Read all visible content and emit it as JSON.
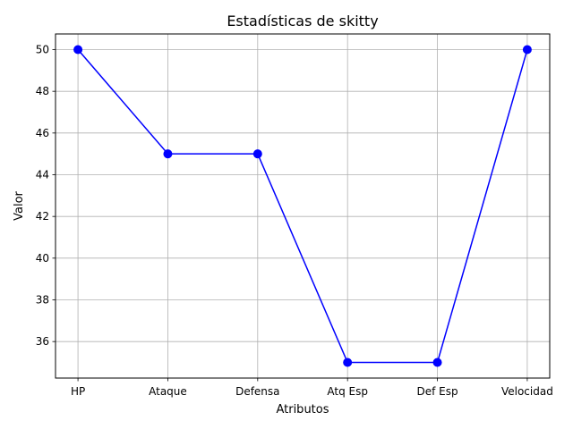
{
  "chart_data": {
    "type": "line",
    "title": "Estadísticas de skitty",
    "xlabel": "Atributos",
    "ylabel": "Valor",
    "categories": [
      "HP",
      "Ataque",
      "Defensa",
      "Atq Esp",
      "Def Esp",
      "Velocidad"
    ],
    "series": [
      {
        "values": [
          50,
          45,
          45,
          35,
          35,
          50
        ],
        "color": "#0000ff",
        "marker": "circle"
      }
    ],
    "ylim": [
      34.25,
      50.75
    ],
    "yticks": [
      36,
      38,
      40,
      42,
      44,
      46,
      48,
      50
    ],
    "grid": true
  }
}
